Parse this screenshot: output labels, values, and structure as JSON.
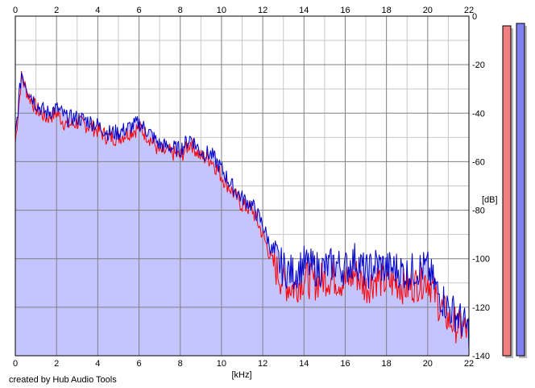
{
  "credit": "created by Hub Audio Tools",
  "chart_data": {
    "type": "area",
    "xlabel": "[kHz]",
    "ylabel": "[dB]",
    "xlim": [
      0,
      22
    ],
    "ylim": [
      -140,
      0
    ],
    "x_ticks": [
      0,
      2,
      4,
      6,
      8,
      10,
      12,
      14,
      16,
      18,
      20,
      22
    ],
    "y_ticks": [
      0,
      -20,
      -40,
      -60,
      -80,
      -100,
      -120,
      -140
    ],
    "grid": true,
    "colors": {
      "fill": "#c4c4ff",
      "left_channel": "#ff0000",
      "right_channel": "#0000c8",
      "major_grid": "#808080",
      "minor_grid": "#c8c8c8"
    },
    "series": [
      {
        "channel": "left",
        "color": "#ff0000",
        "x": [
          0,
          0.3,
          0.6,
          1.0,
          1.5,
          2.0,
          2.5,
          3.0,
          3.5,
          4.0,
          4.5,
          5.0,
          5.5,
          6.0,
          6.5,
          7.0,
          7.5,
          8.0,
          8.5,
          9.0,
          9.5,
          10.0,
          10.5,
          11.0,
          11.5,
          12.0,
          12.5,
          13.0,
          13.5,
          14.0,
          14.5,
          15.0,
          15.5,
          16.0,
          16.5,
          17.0,
          17.5,
          18.0,
          18.5,
          19.0,
          19.5,
          20.0,
          20.5,
          21.0,
          21.5,
          22.0
        ],
        "values": [
          -52,
          -25,
          -32,
          -38,
          -42,
          -40,
          -45,
          -44,
          -45,
          -47,
          -50,
          -50,
          -48,
          -46,
          -50,
          -56,
          -56,
          -58,
          -52,
          -58,
          -59,
          -66,
          -72,
          -78,
          -80,
          -90,
          -102,
          -110,
          -112,
          -108,
          -110,
          -108,
          -108,
          -110,
          -106,
          -112,
          -108,
          -110,
          -110,
          -112,
          -110,
          -108,
          -118,
          -125,
          -128,
          -130
        ]
      },
      {
        "channel": "right",
        "color": "#0000c8",
        "x": [
          0,
          0.3,
          0.6,
          1.0,
          1.5,
          2.0,
          2.5,
          3.0,
          3.5,
          4.0,
          4.5,
          5.0,
          5.5,
          6.0,
          6.5,
          7.0,
          7.5,
          8.0,
          8.5,
          9.0,
          9.5,
          10.0,
          10.5,
          11.0,
          11.5,
          12.0,
          12.5,
          13.0,
          13.5,
          14.0,
          14.5,
          15.0,
          15.5,
          16.0,
          16.5,
          17.0,
          17.5,
          18.0,
          18.5,
          19.0,
          19.5,
          20.0,
          20.5,
          21.0,
          21.5,
          22.0
        ],
        "values": [
          -50,
          -23,
          -30,
          -36,
          -40,
          -38,
          -42,
          -42,
          -43,
          -45,
          -48,
          -48,
          -46,
          -44,
          -48,
          -53,
          -54,
          -55,
          -50,
          -56,
          -57,
          -63,
          -70,
          -75,
          -78,
          -86,
          -98,
          -104,
          -106,
          -102,
          -104,
          -104,
          -102,
          -104,
          -100,
          -106,
          -102,
          -104,
          -104,
          -106,
          -104,
          -104,
          -114,
          -120,
          -124,
          -130
        ]
      }
    ],
    "meters": [
      {
        "channel": "left",
        "color": "#f08080",
        "level_db": -4
      },
      {
        "channel": "right",
        "color": "#8080f0",
        "level_db": -3
      }
    ]
  }
}
